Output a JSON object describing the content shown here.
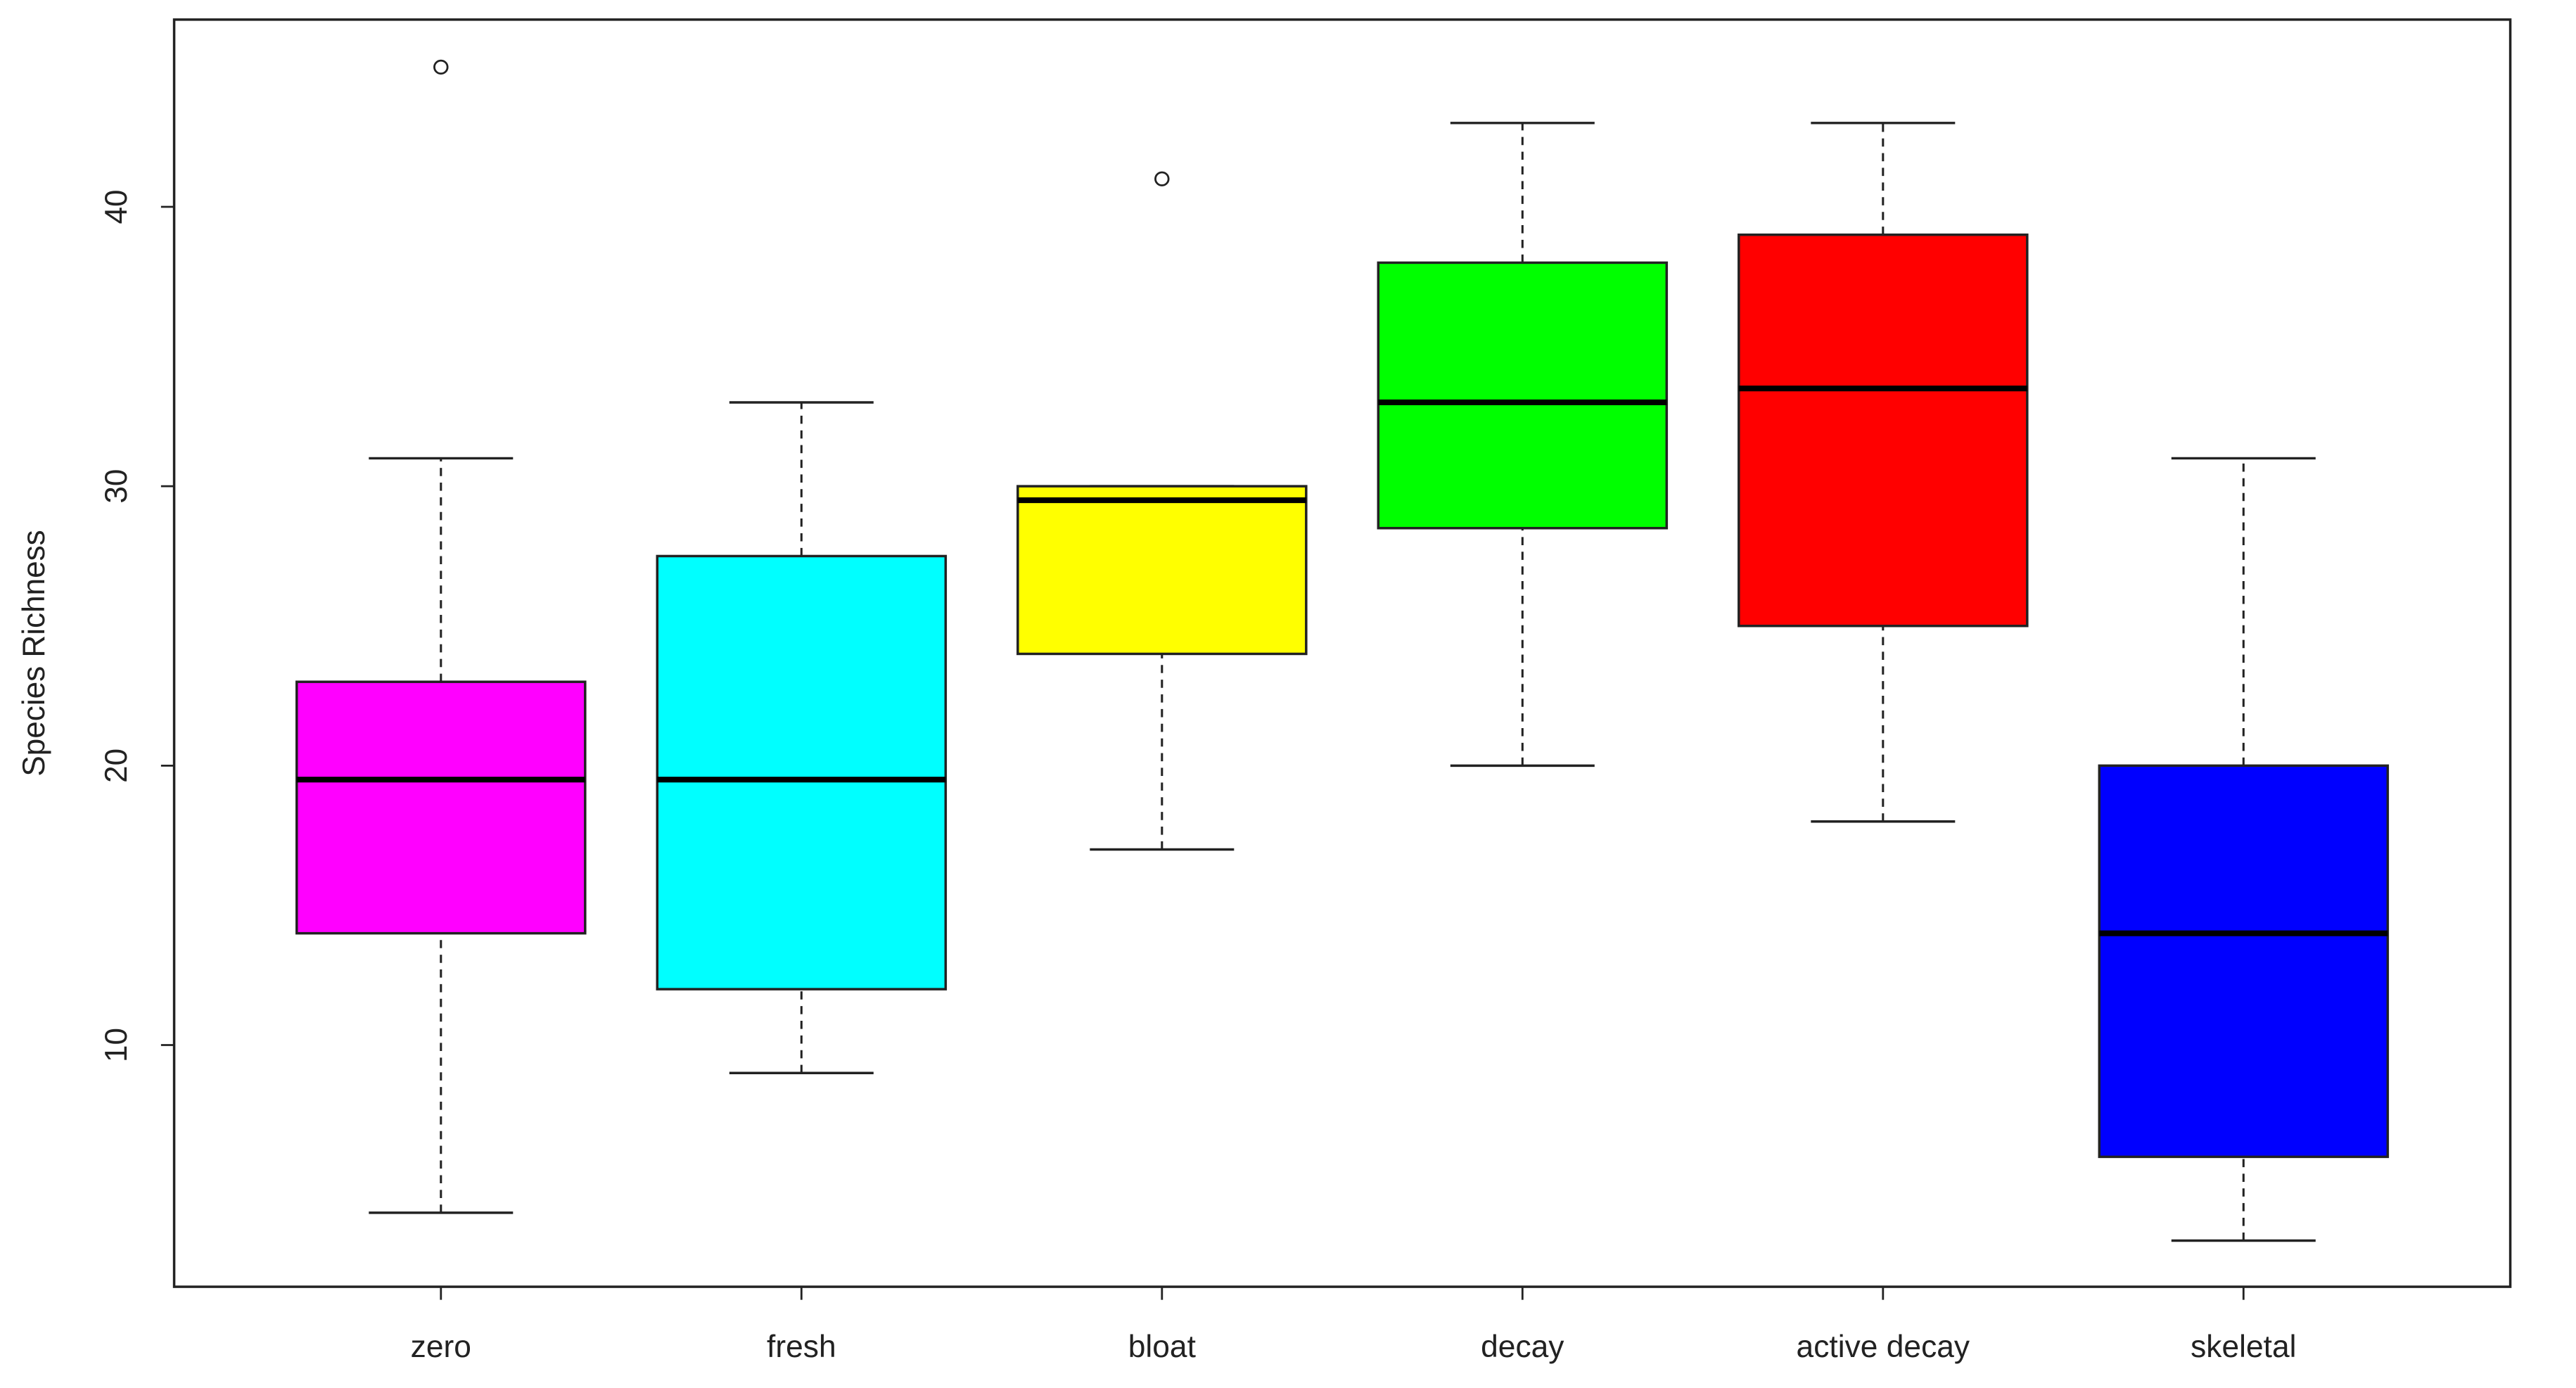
{
  "chart_data": {
    "type": "box",
    "ylabel": "Species Richness",
    "categories": [
      "zero",
      "fresh",
      "bloat",
      "decay",
      "active decay",
      "skeletal"
    ],
    "colors": [
      "#ff00ff",
      "#00ffff",
      "#ffff00",
      "#00ff00",
      "#ff0000",
      "#0000ff"
    ],
    "boxes": [
      {
        "min": 4,
        "q1": 14,
        "median": 19.5,
        "q3": 23,
        "max": 31,
        "outliers": [
          45
        ]
      },
      {
        "min": 9,
        "q1": 12,
        "median": 19.5,
        "q3": 27.5,
        "max": 33,
        "outliers": []
      },
      {
        "min": 17,
        "q1": 24,
        "median": 29.5,
        "q3": 30,
        "max": 30,
        "outliers": [
          41
        ]
      },
      {
        "min": 20,
        "q1": 28.5,
        "median": 33,
        "q3": 38,
        "max": 43,
        "outliers": []
      },
      {
        "min": 18,
        "q1": 25,
        "median": 33.5,
        "q3": 39,
        "max": 43,
        "outliers": []
      },
      {
        "min": 3,
        "q1": 6,
        "median": 14,
        "q3": 20,
        "max": 31,
        "outliers": []
      }
    ],
    "ylim": [
      1.35,
      46.7
    ],
    "yticks": [
      10,
      20,
      30,
      40
    ]
  }
}
